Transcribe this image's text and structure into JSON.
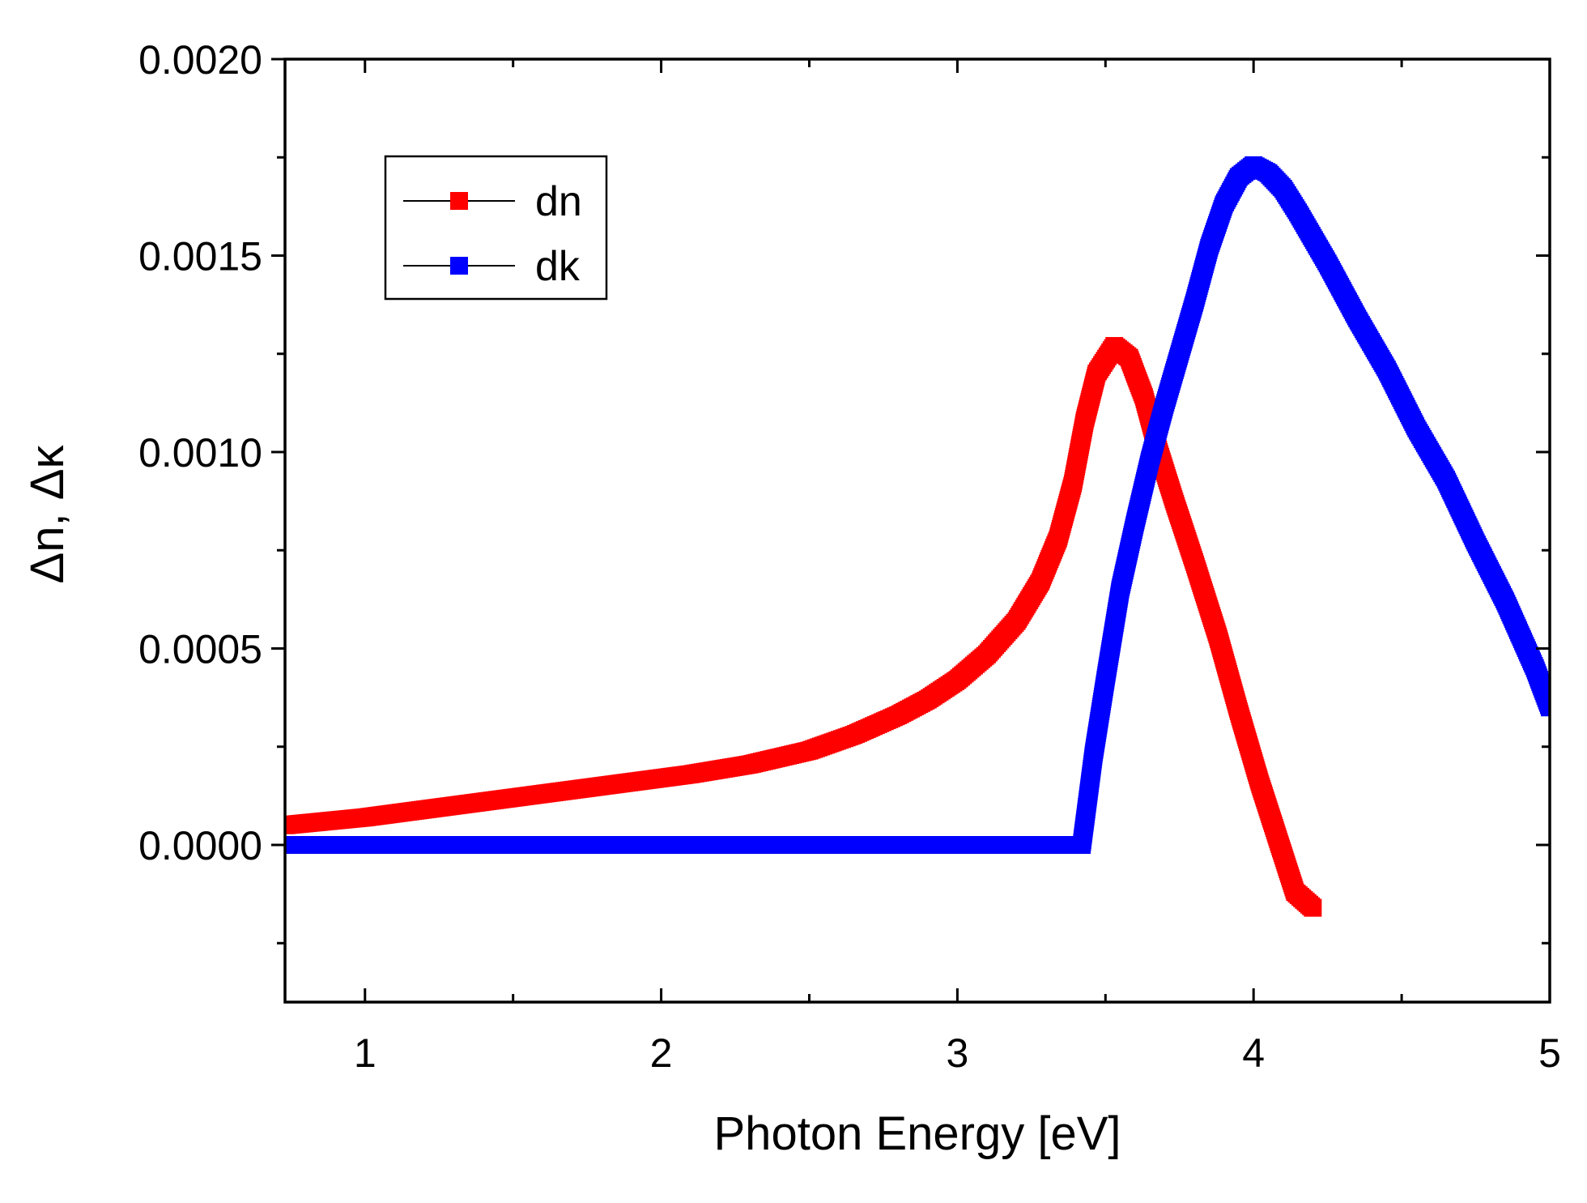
{
  "chart_data": {
    "type": "scatter",
    "title": "",
    "xlabel": "Photon Energy [eV]",
    "ylabel": "Δn, Δκ",
    "xlim": [
      0.73,
      5.0
    ],
    "ylim": [
      -0.0004,
      0.002
    ],
    "x_ticks": [
      1,
      2,
      3,
      4,
      5
    ],
    "x_tick_labels": [
      "1",
      "2",
      "3",
      "4",
      "5"
    ],
    "y_ticks": [
      0.0,
      0.0005,
      0.001,
      0.0015,
      0.002
    ],
    "y_tick_labels": [
      "0.0000",
      "0.0005",
      "0.0010",
      "0.0015",
      "0.0020"
    ],
    "legend": {
      "location": "top-left",
      "entries": [
        "dn",
        "dk"
      ]
    },
    "series": [
      {
        "name": "dn",
        "color": "#ff0000",
        "marker": "square",
        "x": [
          0.73,
          1.0,
          1.3,
          1.6,
          1.9,
          2.1,
          2.3,
          2.5,
          2.65,
          2.8,
          2.9,
          3.0,
          3.1,
          3.2,
          3.28,
          3.34,
          3.39,
          3.43,
          3.47,
          3.53,
          3.58,
          3.63,
          3.68,
          3.73,
          3.8,
          3.88,
          3.95,
          4.02,
          4.08,
          4.14,
          4.2
        ],
        "y": [
          5e-05,
          7e-05,
          0.0001,
          0.00013,
          0.00016,
          0.00018,
          0.000205,
          0.00024,
          0.00028,
          0.00033,
          0.00037,
          0.00042,
          0.000485,
          0.00057,
          0.00067,
          0.00078,
          0.00092,
          0.00108,
          0.0012,
          0.00127,
          0.00124,
          0.00114,
          0.001,
          0.00088,
          0.00072,
          0.00053,
          0.00034,
          0.00016,
          2e-05,
          -0.00012,
          -0.00016
        ]
      },
      {
        "name": "dk",
        "color": "#0000ff",
        "marker": "square",
        "x": [
          0.73,
          1.0,
          1.5,
          2.0,
          2.5,
          3.0,
          3.3,
          3.42,
          3.46,
          3.5,
          3.55,
          3.6,
          3.65,
          3.7,
          3.75,
          3.8,
          3.85,
          3.9,
          3.95,
          4.0,
          4.05,
          4.1,
          4.15,
          4.25,
          4.35,
          4.45,
          4.55,
          4.65,
          4.75,
          4.85,
          4.95,
          5.0
        ],
        "y": [
          0.0,
          0.0,
          0.0,
          0.0,
          0.0,
          0.0,
          0.0,
          0.0,
          0.00023,
          0.00042,
          0.00065,
          0.00082,
          0.00098,
          0.00112,
          0.00125,
          0.00138,
          0.00152,
          0.00163,
          0.0017,
          0.00173,
          0.00171,
          0.00167,
          0.00161,
          0.00148,
          0.00134,
          0.00121,
          0.00106,
          0.00093,
          0.00077,
          0.00062,
          0.00045,
          0.00035
        ]
      }
    ]
  }
}
